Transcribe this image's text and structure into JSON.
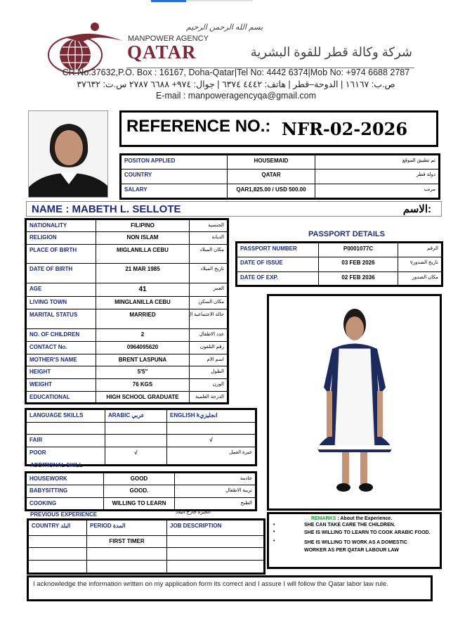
{
  "header": {
    "brand_top": "MANPOWER AGENCY",
    "brand_main": "QATAR",
    "brand_arabic": "شركة وكالة قطر للقوة البشرية",
    "bismillah": "بسم الله الرحمن الرحيم",
    "contact_en": "CR No:37632,P.O. Box : 16167, Doha-Qatar|Tel No: 4442 6374|Mob No: +974 6688 2787",
    "contact_ar": "ص.ب: ١٦١٦٧ | الدوحة–قطر | هاتف: ٤٤٤٢ ٦٣٧٤ | جوال: ٩٧٤+ ٦٦٨٨ ٢٧٨٧ س.ت: ٣٧٦٣٢",
    "email": "E-mail : manpoweragencyqa@gmail.com",
    "colors": {
      "maroon": "#7a2a35",
      "navy": "#1f2a7a",
      "remarks_green": "#1a9a3a"
    }
  },
  "reference": {
    "label": "REFERENCE NO.:",
    "value": "NFR-02-2026"
  },
  "position_table": [
    [
      "POSITON APPLIED",
      "HOUSEMAID",
      "تم تطبيق الموقع"
    ],
    [
      "COUNTRY",
      "QATAR",
      "دولة قطر"
    ],
    [
      "SALARY",
      "QAR1,825.00 / USD 500.00",
      "مرتب"
    ]
  ],
  "name": {
    "label": "NAME : MABETH L. SELLOTE",
    "arabic": "الاسم:"
  },
  "personal_table": [
    [
      "NATIONALITY",
      "FILIPINO",
      "الجنسية"
    ],
    [
      "RELIGION",
      "NON ISLAM",
      "الديانة"
    ],
    [
      "PLACE OF BIRTH",
      "MIGLANILLA CEBU",
      "مكان الميلاد"
    ],
    [
      "DATE OF BIRTH",
      "21 MAR 1985",
      "تاريخ الميلاد"
    ],
    [
      "AGE",
      "41",
      "العمر"
    ],
    [
      "LIVING TOWN",
      "MINGLANILLA CEBU",
      "مكان السكن"
    ],
    [
      "MARITAL STATUS",
      "MARRIED",
      "حالة الاجتماعية ال"
    ],
    [
      "NO. OF CHILDREN",
      "2",
      "عدد الاطفال"
    ],
    [
      "CONTACT No.",
      "0964095620",
      "رقم التلفون"
    ],
    [
      "MOTHER'S NAME",
      "BRENT LASPUNA",
      "اسم الام"
    ],
    [
      "HEIGHT",
      "5'5\"",
      "الطول"
    ],
    [
      "WEIGHT",
      "76 KGS",
      "الوزن"
    ],
    [
      "EDUCATIONAL",
      "HIGH SCHOOL GRADUATE",
      "الدرجة العلمية"
    ]
  ],
  "passport": {
    "title": "PASSPORT DETAILS",
    "rows": [
      [
        "PASSPORT NUMBER",
        "P0001077C",
        "الرقم"
      ],
      [
        "DATE OF ISSUE",
        "03 FEB 2026",
        "تاريخ الصدورv"
      ],
      [
        "DATE OF EXP.",
        "02 FEB 2036",
        "مكان الصدور"
      ]
    ]
  },
  "language_table": [
    [
      "LANGUAGE SKILLS",
      "ARABIC عربي",
      "ENGLISH kانجليزي"
    ],
    [
      "",
      "",
      ""
    ],
    [
      "FAIR",
      "",
      "√"
    ],
    [
      "POOR",
      "√",
      "خبرة العمل"
    ]
  ],
  "additional_skill": {
    "title": "ADDITIONAL SKILL",
    "rows": [
      [
        "HOUSEWORK",
        "GOOD",
        "خادمة"
      ],
      [
        "BABYSITTING",
        "GOOD.",
        "تربية الاطفال"
      ],
      [
        "COOKING",
        "WILLING TO LEARN",
        "الطبخ"
      ]
    ]
  },
  "experience": {
    "title": "PREVIOUS EXPERIENCE",
    "arabic": "الخبرة خارج البلاد",
    "rows": [
      [
        "COUNTRY البلد",
        "PERIOD المدة",
        "JOB DESCRIPTION"
      ],
      [
        "",
        "FIRST TIMER",
        ""
      ],
      [
        "",
        "",
        ""
      ],
      [
        "",
        "",
        ""
      ]
    ]
  },
  "remarks": {
    "label": "REMARKS",
    "heading": ": About the Experience.",
    "items": [
      "SHE CAN TAKE CARE THE CHILDREN.",
      "SHE IS WILLING TO LEARN TO COOK ARABIC FOOD.",
      "SHE IS WILLING TO WORK AS A DOMESTIC WORKER AS PER QATAR LABOUR LAW"
    ]
  },
  "acknowledgement": "I acknowledge the information written on my application form its correct and I assure I will follow the Qatar labor law rule."
}
